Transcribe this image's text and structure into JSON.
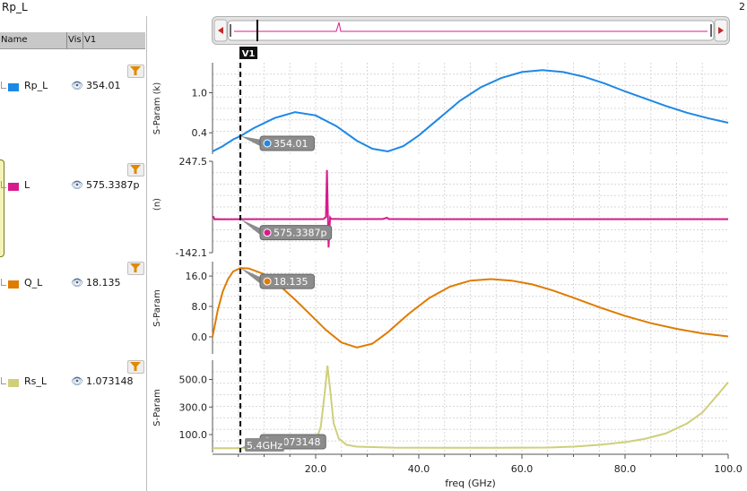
{
  "title": "Rp_L",
  "top_right_text": "2",
  "legend": {
    "headers": {
      "name": "Name",
      "vis": "Vis",
      "v1": "V1"
    },
    "items": [
      {
        "name": "Rp_L",
        "value": "354.01",
        "color": "#1e88e5"
      },
      {
        "name": "L",
        "value": "575.3387p",
        "color": "#d81b8c"
      },
      {
        "name": "Q_L",
        "value": "18.135",
        "color": "#e07b00"
      },
      {
        "name": "Rs_L",
        "value": "1.073148",
        "color": "#cfcf7a"
      }
    ]
  },
  "colors": {
    "grid": "#d8d8d8",
    "axis": "#555555",
    "cursor": "#000000",
    "tooltip_bg": "#8c8c8c"
  },
  "icons": {
    "visibility": "eye-icon",
    "filter": "filter-icon"
  },
  "cursor": {
    "label": "V1",
    "x": 5.4,
    "x_label": "5.4GHz"
  },
  "chart_data": [
    {
      "type": "line",
      "name": "Rp_L",
      "ylabel": "S-Param (k)",
      "ytick_labels": [
        "1.0",
        "0.4"
      ],
      "ylim": [
        0.08,
        1.45
      ],
      "grid": true,
      "color": "#1e88e5",
      "marker_label": "354.01",
      "x": [
        0,
        2,
        4,
        5.4,
        8,
        12,
        16,
        20,
        24,
        28,
        31,
        34,
        37,
        40,
        44,
        48,
        52,
        56,
        60,
        64,
        68,
        72,
        76,
        80,
        84,
        88,
        92,
        96,
        100
      ],
      "y": [
        0.12,
        0.2,
        0.3,
        0.35,
        0.47,
        0.62,
        0.71,
        0.66,
        0.5,
        0.28,
        0.16,
        0.12,
        0.2,
        0.36,
        0.62,
        0.88,
        1.08,
        1.22,
        1.31,
        1.34,
        1.31,
        1.24,
        1.14,
        1.02,
        0.91,
        0.8,
        0.7,
        0.62,
        0.55
      ]
    },
    {
      "type": "line",
      "name": "L",
      "ylabel": "(n)",
      "ytick_labels": [
        "247.5",
        "-142.1"
      ],
      "ylim": [
        -142.1,
        247.5
      ],
      "grid": true,
      "color": "#d81b8c",
      "marker_label": "575.3387p",
      "x": [
        0,
        0.2,
        0.4,
        1,
        3,
        5.4,
        10,
        15,
        20,
        21.5,
        22,
        22.2,
        22.5,
        22.8,
        23,
        25,
        33,
        33.8,
        34.2,
        34.8,
        40,
        60,
        80,
        100
      ],
      "y": [
        12,
        10,
        0,
        0.6,
        0.5,
        0.575,
        0.6,
        0.6,
        0.6,
        1,
        10,
        210,
        -120,
        8,
        2,
        1,
        1,
        7,
        1,
        1,
        0.8,
        0.8,
        0.8,
        0.8
      ]
    },
    {
      "type": "line",
      "name": "Q_L",
      "ylabel": "S-Param",
      "ytick_labels": [
        "16.0",
        "8.0",
        "0.0"
      ],
      "ylim": [
        -4.5,
        19.8
      ],
      "grid": true,
      "color": "#e07b00",
      "marker_label": "18.135",
      "x": [
        0,
        1,
        2,
        3,
        4,
        5.4,
        7,
        10,
        13,
        16,
        19,
        22,
        25,
        28,
        31,
        34,
        38,
        42,
        46,
        50,
        54,
        58,
        62,
        66,
        70,
        75,
        80,
        85,
        90,
        95,
        100
      ],
      "y": [
        0,
        7,
        12,
        15.2,
        17.2,
        18.13,
        18.0,
        16.5,
        13.5,
        9.8,
        5.8,
        1.8,
        -1.5,
        -2.8,
        -1.8,
        1.2,
        6,
        10.2,
        13.2,
        14.8,
        15.2,
        14.8,
        13.8,
        12.2,
        10.3,
        7.8,
        5.5,
        3.6,
        2.1,
        0.9,
        0.1
      ]
    },
    {
      "type": "line",
      "name": "Rs_L",
      "ylabel": "S-Param",
      "ytick_labels": [
        "500.0",
        "300.0",
        "100.0"
      ],
      "ylim": [
        -30,
        640
      ],
      "grid": true,
      "color": "#cfcf7a",
      "marker_label": "1.073148",
      "x": [
        0,
        5.4,
        10,
        15,
        18,
        20,
        21,
        21.8,
        22.3,
        22.8,
        23.5,
        24.5,
        26,
        28,
        35,
        45,
        55,
        65,
        70,
        75,
        80,
        84,
        88,
        92,
        95,
        98,
        100
      ],
      "y": [
        0.5,
        1.07,
        2,
        4,
        12,
        45,
        160,
        420,
        600,
        430,
        180,
        70,
        25,
        12,
        5,
        4,
        4,
        6,
        12,
        25,
        45,
        70,
        110,
        180,
        260,
        390,
        480
      ]
    }
  ],
  "x_axis": {
    "label": "freq (GHz)",
    "xlim": [
      0,
      100
    ],
    "ticks": [
      20,
      40,
      60,
      80,
      100
    ],
    "tick_labels": [
      "20.0",
      "40.0",
      "60.0",
      "80.0",
      "100.0"
    ]
  }
}
